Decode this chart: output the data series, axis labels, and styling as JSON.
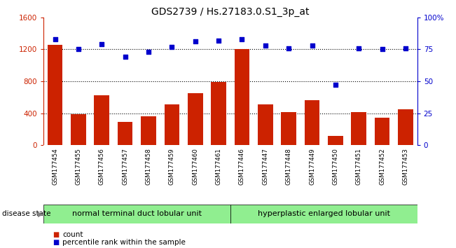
{
  "title": "GDS2739 / Hs.27183.0.S1_3p_at",
  "samples": [
    "GSM177454",
    "GSM177455",
    "GSM177456",
    "GSM177457",
    "GSM177458",
    "GSM177459",
    "GSM177460",
    "GSM177461",
    "GSM177446",
    "GSM177447",
    "GSM177448",
    "GSM177449",
    "GSM177450",
    "GSM177451",
    "GSM177452",
    "GSM177453"
  ],
  "counts": [
    1260,
    390,
    620,
    290,
    360,
    510,
    650,
    790,
    1200,
    510,
    410,
    560,
    115,
    410,
    340,
    450
  ],
  "percentiles": [
    83,
    75,
    79,
    69,
    73,
    77,
    81,
    82,
    83,
    78,
    76,
    78,
    47,
    76,
    75,
    76
  ],
  "group1_label": "normal terminal duct lobular unit",
  "group1_count": 8,
  "group2_label": "hyperplastic enlarged lobular unit",
  "group2_count": 8,
  "bar_color": "#cc2200",
  "dot_color": "#0000cc",
  "left_ylim": [
    0,
    1600
  ],
  "right_ylim": [
    0,
    100
  ],
  "left_yticks": [
    0,
    400,
    800,
    1200,
    1600
  ],
  "right_yticks": [
    0,
    25,
    50,
    75,
    100
  ],
  "right_yticklabels": [
    "0",
    "25",
    "50",
    "75",
    "100%"
  ],
  "grid_values": [
    400,
    800,
    1200
  ],
  "disease_state_label": "disease state",
  "legend_count_label": "count",
  "legend_pct_label": "percentile rank within the sample",
  "group1_color": "#90ee90",
  "group2_color": "#90ee90",
  "tick_area_color": "#cccccc",
  "background_color": "#ffffff"
}
